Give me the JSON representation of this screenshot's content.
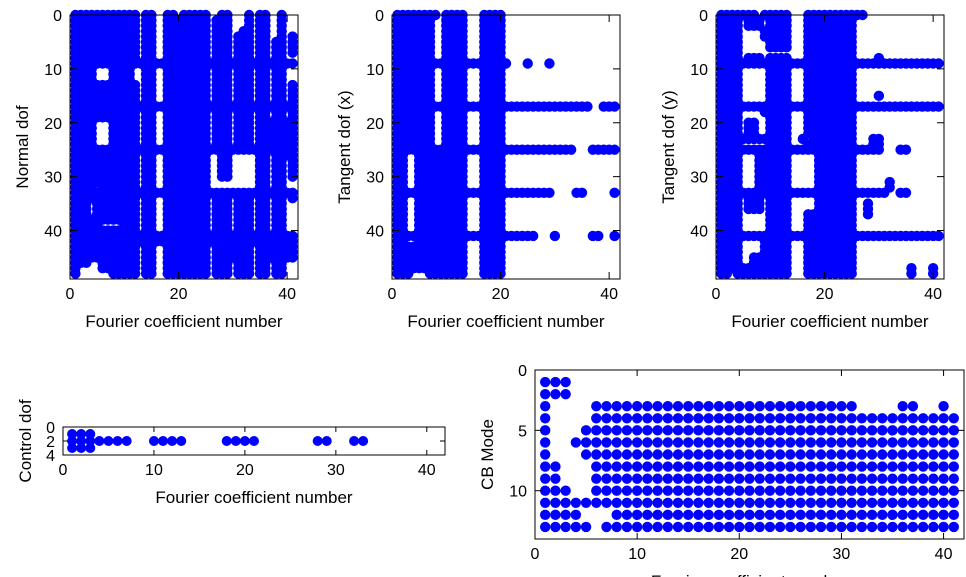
{
  "chart_data": [
    {
      "id": "normal-dof",
      "type": "scatter",
      "title": "",
      "xlabel": "Fourier coefficient number",
      "ylabel": "Normal dof",
      "xlim": [
        0,
        42
      ],
      "ylim": [
        0,
        49
      ],
      "y_reversed": true,
      "xticks": [
        0,
        20,
        40
      ],
      "yticks": [
        0,
        10,
        20,
        30,
        40
      ],
      "color": "#0000ff",
      "rows": [
        [
          0,
          "1-12 14-15 18-19 21-25 28-29 33 35-36 39"
        ],
        [
          1,
          "1-12 14-15 18-25 27-29 33 35-36 39"
        ],
        [
          2,
          "1-12 14-15 18-25 27-29 33 35-36 39"
        ],
        [
          3,
          "1-12 14-15 18-25 27-29 32-33 35-36 39"
        ],
        [
          4,
          "1-12 14-15 18-25 27-29 31-33 35-36 39 41"
        ],
        [
          5,
          "1-12 14-15 18-25 27-29 31-33 35-36 38-39 41"
        ],
        [
          6,
          "1-12 14-15 18-25 27-29 31-33 35-36 38-39 41"
        ],
        [
          7,
          "1-12 14-15 18-25 27-29 31-33 35-36 38-39 41"
        ],
        [
          8,
          "1-12 14-15 18-25 27-29 31-33 35-36 38-39"
        ],
        [
          9,
          "1-41"
        ],
        [
          10,
          "1-4 8-11 14-15 18-25 27-29 31-33 35-36 38-39"
        ],
        [
          11,
          "1-4 8-11 14-15 18-25 27-29 31-33 35-36 38-39"
        ],
        [
          12,
          "1-4 8-11 14-15 18-25 27-29 31-33 35-36 38-39"
        ],
        [
          13,
          "1-12 14-15 18-25 27-29 31-33 35-36 38-39 41"
        ],
        [
          14,
          "1-12 14-15 18-25 27-29 31-33 35-36 38-39 41"
        ],
        [
          15,
          "1-12 14-15 18-25 27-29 31-33 35-36 38-39 41"
        ],
        [
          16,
          "1-12 14-15 18-25 27-29 31-33 35-36 38-39 41"
        ],
        [
          17,
          "1-41"
        ],
        [
          18,
          "1-12 14-15 18-25 27-29 31-33 35-36 38-39 41"
        ],
        [
          19,
          "1-12 14-15 18-25 27-29 31-33 35-36 38-39 41"
        ],
        [
          20,
          "1-4 8-12 14-15 18-25 27-29 31-33 35-41"
        ],
        [
          21,
          "1-4 8-12 14-15 18-25 27-29 31-33 35-41"
        ],
        [
          22,
          "1-4 8-12 14-15 18-25 27-29 31-33 35-41"
        ],
        [
          23,
          "1-4 8-12 14-15 18-25 27-29 31-33 35-41"
        ],
        [
          24,
          "1-4 8-12 14-15 18-25 27-29 31-33 35-41"
        ],
        [
          25,
          "1-41"
        ],
        [
          26,
          "1-12 14-15 18-25 28-29 35-36 38-41"
        ],
        [
          27,
          "1-12 14-15 18-25 28-29 35-36 38-39 41"
        ],
        [
          28,
          "1-12 14-15 18-25 28-29 35-36 38-39 41"
        ],
        [
          29,
          "1-12 14-15 18-25 28-29 35-36 38-39 41"
        ],
        [
          30,
          "1-12 14-15 18-25 28-29 35-36 38-39 41"
        ],
        [
          31,
          "1-12 14-15 18-25 35-36 38-39"
        ],
        [
          32,
          "1-4 6-12 14-15 18-25 35-36 38-39"
        ],
        [
          33,
          "1-41"
        ],
        [
          34,
          "1-12 14-15 18-25 27-29 31-33 35-36 38-39 41"
        ],
        [
          35,
          "1-3 5-12 14-15 18-25 27-29 31-33 35-36 38-39"
        ],
        [
          36,
          "1-3 5-12 14-15 18-25 27-29 31-33 35-36 38-39"
        ],
        [
          37,
          "1-3 5-12 14-15 18-25 27-29 31-33 35-36 38-39"
        ],
        [
          38,
          "1-12 14-15 18-25 27-29 31-33 35-36 38-39"
        ],
        [
          39,
          "1-5 10-12 14-15 18-25 27-29 31-33 35-36 38-39"
        ],
        [
          40,
          "1-12 14-15 18-25 27-29 31-33 35-36 38-39"
        ],
        [
          41,
          "1-41"
        ],
        [
          42,
          "1-41"
        ],
        [
          43,
          "1-12 14-15 18-25 27-33 35-41"
        ],
        [
          44,
          "1-12 14-15 18-25 27-33 35-41"
        ],
        [
          45,
          "1-12 14-15 18-25 27-33 35-41"
        ],
        [
          46,
          "1-3 6-12 14-15 18-25 27-29 31-33 35-36 38-39"
        ],
        [
          47,
          "1 6-12 14-15 18-25 27-29 31-33 35-36 38-39"
        ],
        [
          48,
          "1 8-12 14-15 18-25 27-29 31-33 35-36 38-39"
        ]
      ]
    },
    {
      "id": "tangent-dof-x",
      "type": "scatter",
      "title": "",
      "xlabel": "Fourier coefficient number",
      "ylabel": "Tangent dof (x)",
      "xlim": [
        0,
        42
      ],
      "ylim": [
        0,
        49
      ],
      "y_reversed": true,
      "xticks": [
        0,
        20,
        40
      ],
      "yticks": [
        0,
        10,
        20,
        30,
        40
      ],
      "color": "#0000ff",
      "rows": [
        [
          0,
          "1-8 10-13 17-20"
        ],
        [
          1,
          "1-7 10-13 17-20"
        ],
        [
          2,
          "1-7 10-13 17-20"
        ],
        [
          3,
          "1-7 10-13 17-20"
        ],
        [
          4,
          "1-7 10-13 17-20"
        ],
        [
          5,
          "1-7 10-13 17-20"
        ],
        [
          6,
          "1-7 10-13 17-20"
        ],
        [
          7,
          "1-7 10-13 17-20"
        ],
        [
          8,
          "1-7 10-13 17-20"
        ],
        [
          9,
          "1-21 25 29"
        ],
        [
          10,
          "1-7 10-13 17-20"
        ],
        [
          11,
          "1-7 10-13 17-20"
        ],
        [
          12,
          "1-7 10-13 17-20"
        ],
        [
          13,
          "1-7 10-13 17-20"
        ],
        [
          14,
          "1-7 10-13 17-20"
        ],
        [
          15,
          "1-7 10-13 17-20"
        ],
        [
          16,
          "1-7 10-13 17-20"
        ],
        [
          17,
          "1-36 39-41"
        ],
        [
          18,
          "1-7 10-13 17-20"
        ],
        [
          19,
          "1-7 10-13 17-20"
        ],
        [
          20,
          "1-7 10-13 17-20"
        ],
        [
          21,
          "1-7 10-13 17-20"
        ],
        [
          22,
          "1-7 10-13 17-20"
        ],
        [
          23,
          "1-7 10-13 17-20"
        ],
        [
          24,
          "1-7 10-13 17-20"
        ],
        [
          25,
          "1-33 37-41"
        ],
        [
          26,
          "1-2 5-13 17-20"
        ],
        [
          27,
          "1-2 5-13 17-20"
        ],
        [
          28,
          "1-2 5-13 17-20"
        ],
        [
          29,
          "1-2 5-13 17-20"
        ],
        [
          30,
          "1-2 5-13 17-20"
        ],
        [
          31,
          "1-2 5-13 17-20"
        ],
        [
          32,
          "1-2 5-13 17-20"
        ],
        [
          33,
          "1-29 34-35 41"
        ],
        [
          34,
          "1-2 5-13 17-20"
        ],
        [
          35,
          "1-2 5-13 17-20"
        ],
        [
          36,
          "1-2 5-13 17-20"
        ],
        [
          37,
          "1-2 5-13 17-20"
        ],
        [
          38,
          "1-2 5-13 17-20"
        ],
        [
          39,
          "1-2 5-13 17-20"
        ],
        [
          40,
          "1-2 5-13 17-20"
        ],
        [
          41,
          "1-26 30 37-38 41"
        ],
        [
          42,
          "1-2 5-13 17-20"
        ],
        [
          43,
          "1-13 17-20"
        ],
        [
          44,
          "1-13 17-20"
        ],
        [
          45,
          "1-13 17-20"
        ],
        [
          46,
          "1-13 17-20"
        ],
        [
          47,
          "1-13 17-20"
        ],
        [
          48,
          "1-3 7-13 17-20"
        ]
      ]
    },
    {
      "id": "tangent-dof-y",
      "type": "scatter",
      "title": "",
      "xlabel": "Fourier coefficient number",
      "ylabel": "Tangent dof (y)",
      "xlim": [
        0,
        42
      ],
      "ylim": [
        0,
        49
      ],
      "y_reversed": true,
      "xticks": [
        0,
        20,
        40
      ],
      "yticks": [
        0,
        10,
        20,
        30,
        40
      ],
      "color": "#0000ff",
      "rows": [
        [
          0,
          "1-7 9-13 17-27"
        ],
        [
          1,
          "1-4 6-8 10-13 17-25"
        ],
        [
          2,
          "1-4 6-8 10-13 17-25"
        ],
        [
          3,
          "1-4 9-13 17-25"
        ],
        [
          4,
          "1-4 9-13 17-25"
        ],
        [
          5,
          "1-4 10-13 17-25"
        ],
        [
          6,
          "1-4 10-13 17-25"
        ],
        [
          7,
          "1-4 17-25"
        ],
        [
          8,
          "1-4 6-8 10-13 17-25 30"
        ],
        [
          9,
          "1-41"
        ],
        [
          10,
          "1-4 10-13 17-25"
        ],
        [
          11,
          "1-4 10-13 17-25"
        ],
        [
          12,
          "1-4 10-13 17-25"
        ],
        [
          13,
          "1-4 10-13 17-25"
        ],
        [
          14,
          "1-4 10-13 17-25"
        ],
        [
          15,
          "1-4 10-13 17-25 30"
        ],
        [
          16,
          "1-4 10-13 17-25"
        ],
        [
          17,
          "1-41"
        ],
        [
          18,
          "1-4 9-13 17-25"
        ],
        [
          19,
          "1-4 10-13 17-25"
        ],
        [
          20,
          "1-4 6-7 10-13 17-25"
        ],
        [
          21,
          "1-4 6-7 10-13 17-25"
        ],
        [
          22,
          "1-4 6-7 10-13 17-25"
        ],
        [
          23,
          "1-13 16 18-25 29-30"
        ],
        [
          24,
          "1-4 10-13 17-25 29-30"
        ],
        [
          25,
          "1-30 34-35"
        ],
        [
          26,
          "1-4 8-13 19-25"
        ],
        [
          27,
          "1-4 8-13 19-25"
        ],
        [
          28,
          "1-4 8-13 19-25"
        ],
        [
          29,
          "1-4 8-13 19-25"
        ],
        [
          30,
          "1-4 8-13 19-25"
        ],
        [
          31,
          "1-4 8-13 19-25 32"
        ],
        [
          32,
          "1-4 8-13 19-25 32"
        ],
        [
          33,
          "1-31 34-35"
        ],
        [
          34,
          "1-4 6-8 10-13 19-25"
        ],
        [
          35,
          "1-4 6-8 10-13 19-25 28"
        ],
        [
          36,
          "1-4 6-8 10-13 19-25 28"
        ],
        [
          37,
          "1-4 10-13 17-25 28"
        ],
        [
          38,
          "1-4 10-13 17-25"
        ],
        [
          39,
          "1-4 10-13 17-25"
        ],
        [
          40,
          "1-4 10-13 17-25"
        ],
        [
          41,
          "1-41"
        ],
        [
          42,
          "1-4 9-13 17-25"
        ],
        [
          43,
          "1-4 9-13 17-25"
        ],
        [
          44,
          "1-4 9-13 17-25"
        ],
        [
          45,
          "1-4 7-13 17-25"
        ],
        [
          46,
          "1-4 7-13 17-25"
        ],
        [
          47,
          "1-13 17-25 36 40"
        ],
        [
          48,
          "1-2 4-13 17-25 36 40"
        ]
      ]
    },
    {
      "id": "control-dof",
      "type": "scatter",
      "title": "",
      "xlabel": "Fourier coefficient number",
      "ylabel": "Control dof",
      "xlim": [
        0,
        42
      ],
      "ylim": [
        0,
        4
      ],
      "y_reversed": true,
      "xticks": [
        0,
        10,
        20,
        30,
        40
      ],
      "yticks": [
        0,
        2,
        4
      ],
      "color": "#0000ff",
      "rows": [
        [
          1,
          "1-3"
        ],
        [
          2,
          "1-7 10-13 18-21 28-29 32-33"
        ],
        [
          3,
          "1-3"
        ]
      ]
    },
    {
      "id": "cb-mode",
      "type": "scatter",
      "title": "",
      "xlabel": "Fourier coefficient number",
      "ylabel": "CB Mode",
      "xlim": [
        0,
        42
      ],
      "ylim": [
        0,
        14
      ],
      "y_reversed": true,
      "xticks": [
        0,
        10,
        20,
        30,
        40
      ],
      "yticks": [
        0,
        5,
        10
      ],
      "color": "#0000ff",
      "rows": [
        [
          1,
          "1-3"
        ],
        [
          2,
          "1-3"
        ],
        [
          3,
          "1 6-31 36-37 40"
        ],
        [
          4,
          "1 6-41"
        ],
        [
          5,
          "1 5-41"
        ],
        [
          6,
          "1 4-41"
        ],
        [
          7,
          "1 5-41"
        ],
        [
          8,
          "1-2 6-41"
        ],
        [
          9,
          "1-2 6-41"
        ],
        [
          10,
          "1-3 6-41"
        ],
        [
          11,
          "1-41"
        ],
        [
          12,
          "1-4 8-41"
        ],
        [
          13,
          "1-5 7-41"
        ]
      ]
    }
  ]
}
